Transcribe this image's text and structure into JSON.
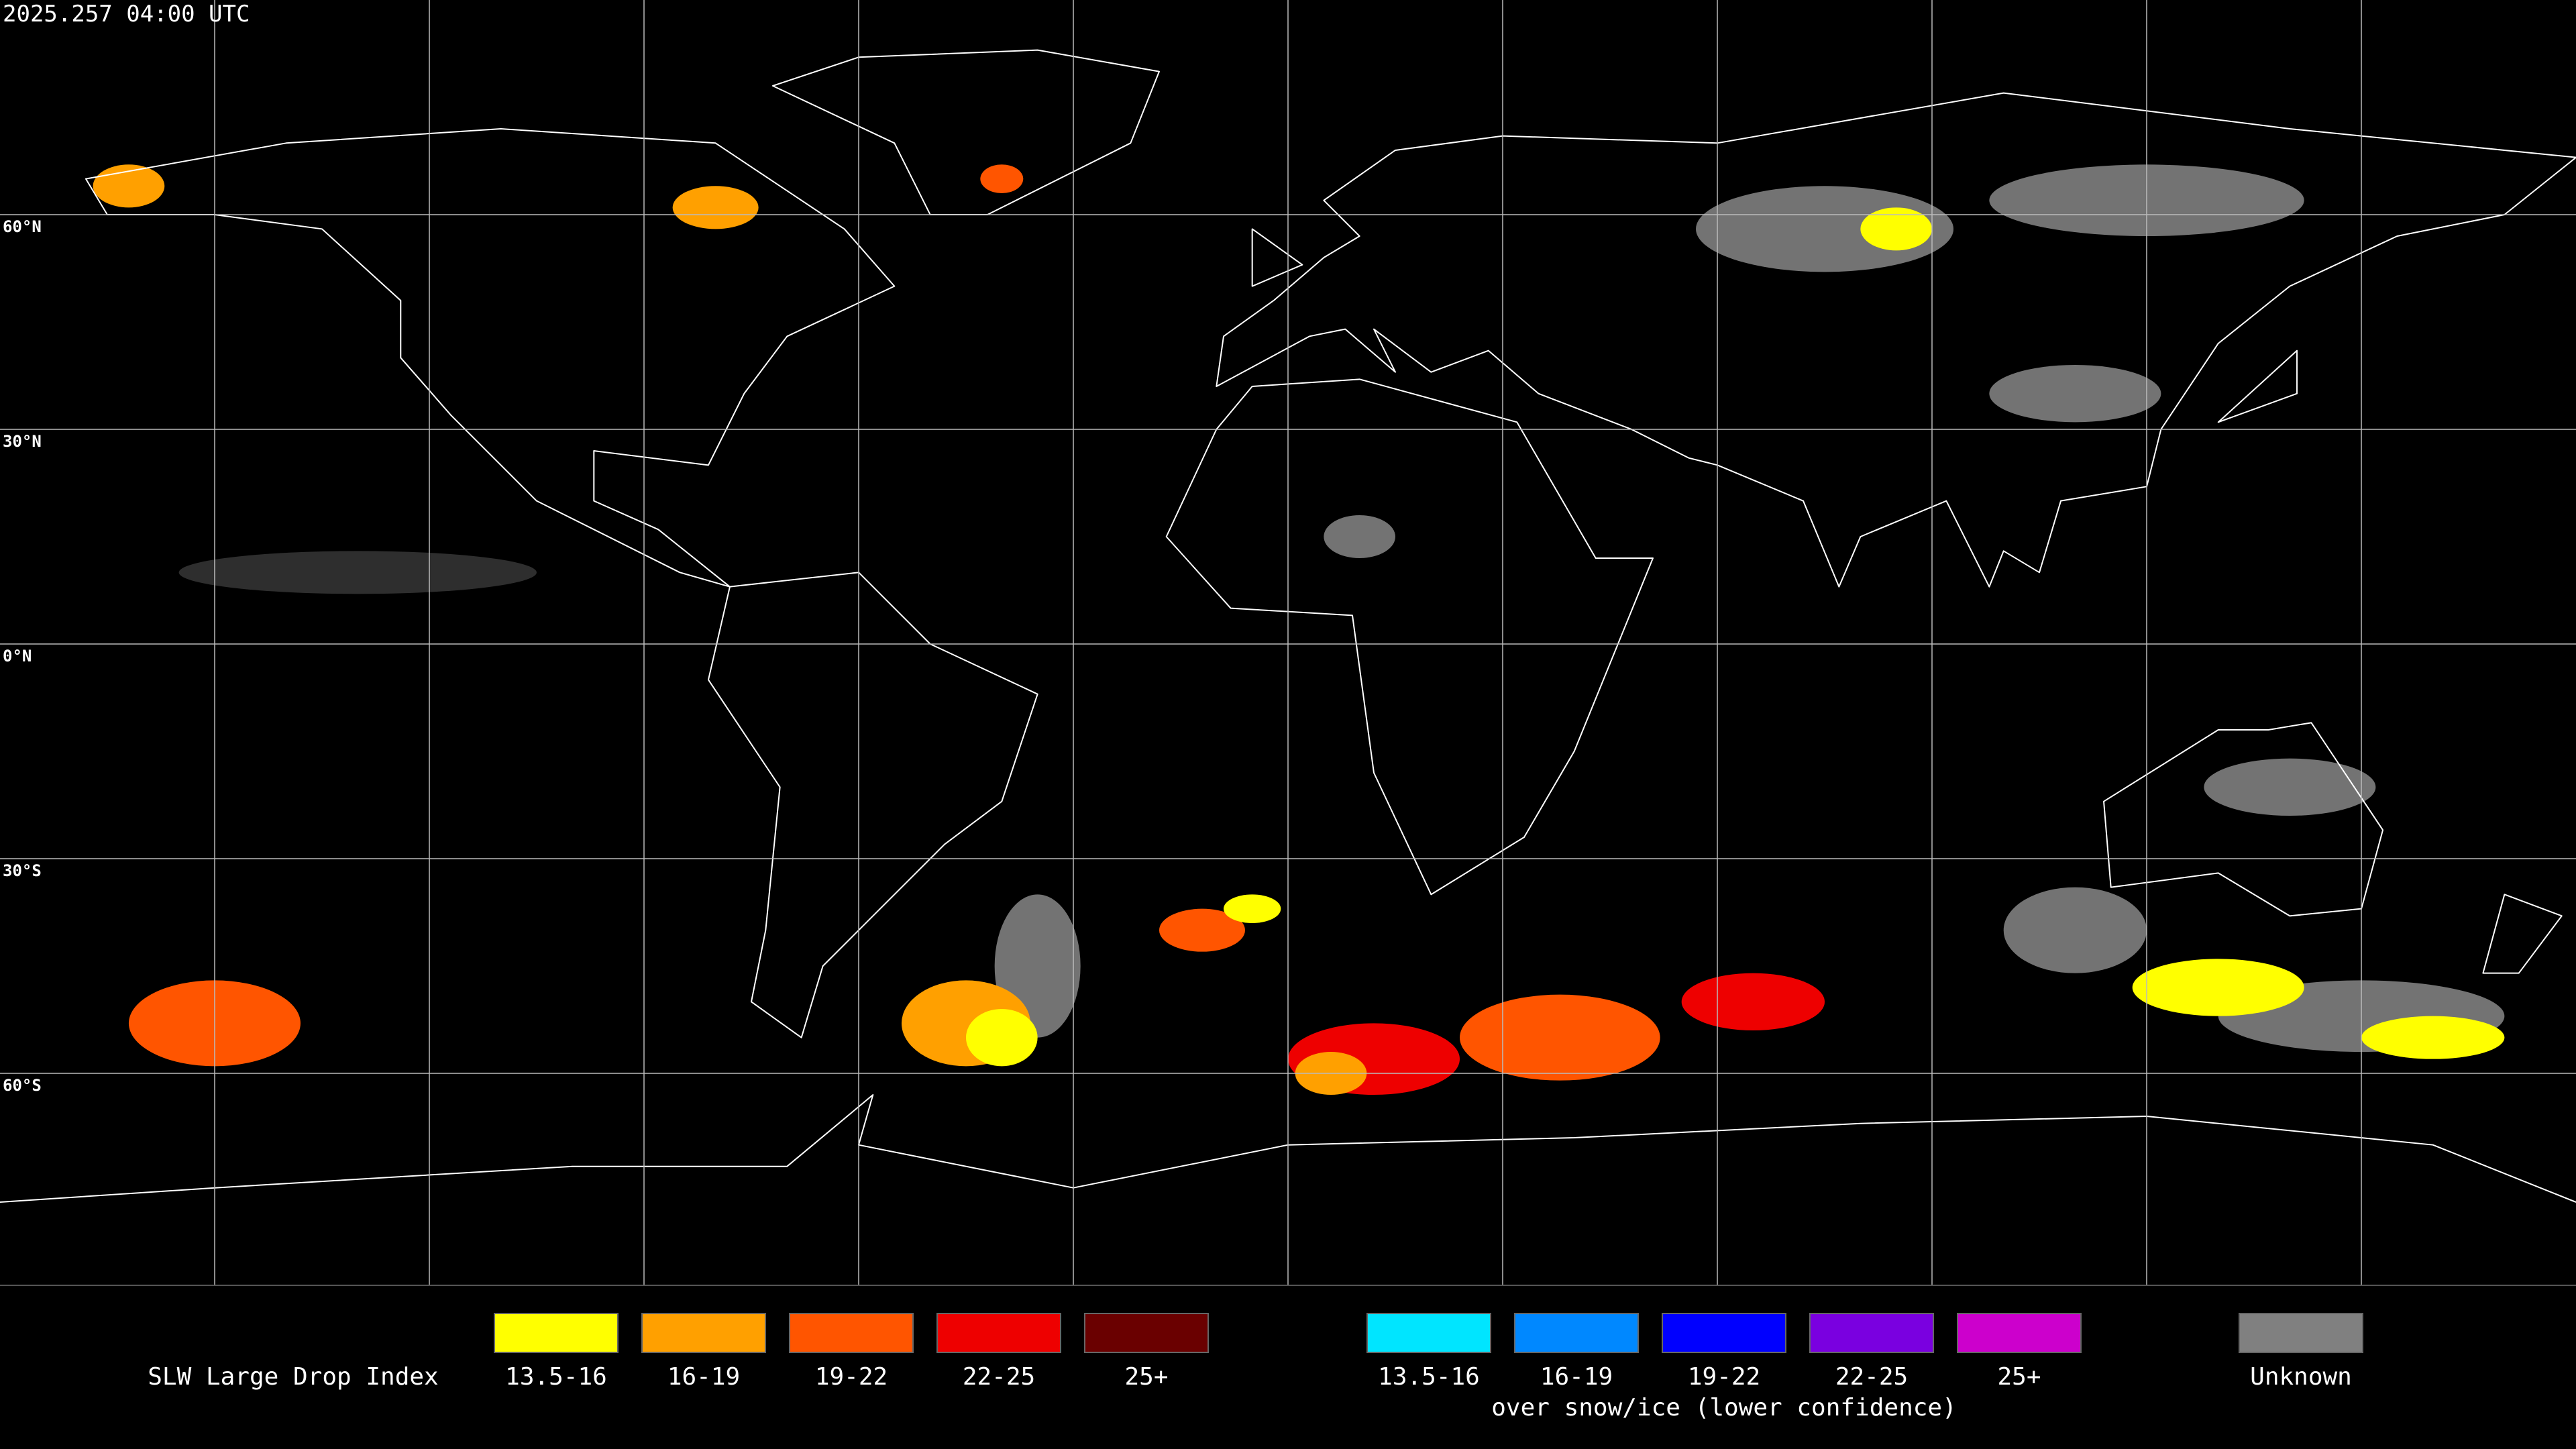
{
  "header": {
    "timestamp": "2025.257 04:00 UTC"
  },
  "map": {
    "latitude_labels": [
      "60°N",
      "30°N",
      "0°N",
      "30°S",
      "60°S"
    ]
  },
  "legend": {
    "title": "SLW Large Drop Index",
    "groups": [
      {
        "items": [
          {
            "label": "13.5-16",
            "color": "#ffff00"
          },
          {
            "label": "16-19",
            "color": "#ffa000"
          },
          {
            "label": "19-22",
            "color": "#ff5500"
          },
          {
            "label": "22-25",
            "color": "#ee0000"
          },
          {
            "label": "25+",
            "color": "#6a0000"
          }
        ]
      },
      {
        "items": [
          {
            "label": "13.5-16",
            "color": "#00e5ff"
          },
          {
            "label": "16-19",
            "color": "#0088ff"
          },
          {
            "label": "19-22",
            "color": "#0000ff"
          },
          {
            "label": "22-25",
            "color": "#7a00e0"
          },
          {
            "label": "25+",
            "color": "#cc00cc"
          }
        ],
        "caption": "over snow/ice (lower confidence)"
      },
      {
        "items": [
          {
            "label": "Unknown",
            "color": "#808080"
          }
        ]
      }
    ]
  }
}
